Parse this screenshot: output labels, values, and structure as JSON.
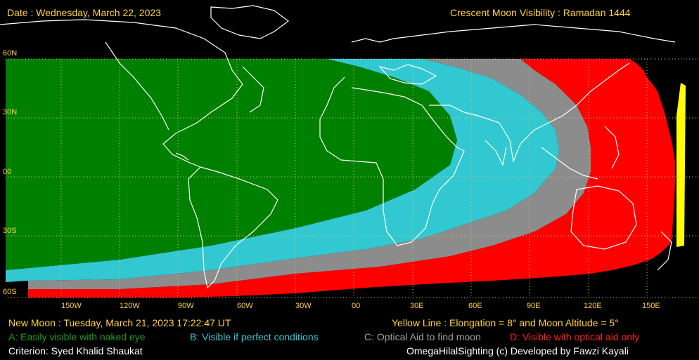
{
  "header": {
    "date": "Date : Wednesday, March 22, 2023",
    "title": "Crescent Moon Visibility : Ramadan  1444"
  },
  "latitude_labels": [
    "60N",
    "30N",
    "00",
    "30S",
    "60S"
  ],
  "longitude_labels": [
    "150W",
    "120W",
    "90W",
    "60W",
    "30W",
    "00",
    "30E",
    "60E",
    "90E",
    "120E",
    "150E"
  ],
  "footer": {
    "new_moon": "New Moon : Tuesday, March 21, 2023  17:22:47  UT",
    "yellow_line": "Yellow Line : Elongation = 8° and Moon Altitude = 5°",
    "criterion": "Criterion: Syed Khalid Shaukat",
    "credit": "OmegaHilalSighting  (c)  Developed by Fawzi Kayali"
  },
  "legend": [
    {
      "text": "A: Easily visible with naked eye",
      "color": "#008000"
    },
    {
      "text": "B: Visible if perfect conditions",
      "color": "#00c8d2"
    },
    {
      "text": "C: Optical Aid to find moon",
      "color": "#9a9a9a"
    },
    {
      "text": "D: Visible with optical aid only",
      "color": "#ff0000"
    }
  ],
  "zone_colors": {
    "A": "#008000",
    "B": "#32c8d2",
    "C": "#8c8c8c",
    "D": "#ff0000",
    "yellow_line": "#ffff00",
    "grid": "#c8c878",
    "coast": "#ffffff"
  }
}
